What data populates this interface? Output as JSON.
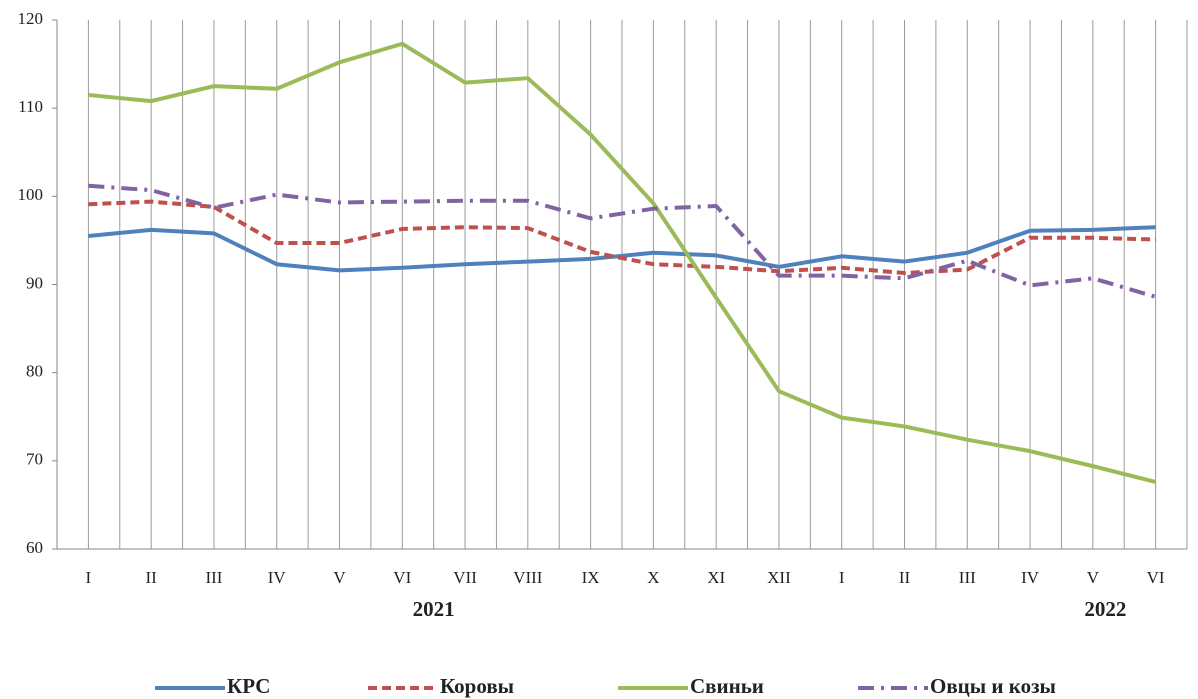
{
  "chart_data": {
    "type": "line",
    "categories": [
      "I",
      "II",
      "III",
      "IV",
      "V",
      "VI",
      "VII",
      "VIII",
      "IX",
      "X",
      "XI",
      "XII",
      "I",
      "II",
      "III",
      "IV",
      "V",
      "VI"
    ],
    "group_labels": [
      "2021",
      "2022"
    ],
    "ylim": [
      60,
      120
    ],
    "yticks": [
      60,
      70,
      80,
      90,
      100,
      110,
      120
    ],
    "grid": true,
    "series": [
      {
        "name": "КРС",
        "color": "#4f81bd",
        "dash": "solid",
        "values": [
          95.5,
          96.2,
          95.8,
          92.3,
          91.6,
          91.9,
          92.3,
          92.6,
          92.9,
          93.6,
          93.3,
          92.0,
          93.2,
          92.6,
          93.6,
          96.1,
          96.2,
          96.5
        ]
      },
      {
        "name": "Коровы",
        "color": "#c0504d",
        "dash": "dash",
        "values": [
          99.1,
          99.4,
          98.8,
          94.7,
          94.7,
          96.3,
          96.5,
          96.4,
          93.7,
          92.3,
          92.0,
          91.5,
          91.9,
          91.3,
          91.7,
          95.3,
          95.3,
          95.1
        ]
      },
      {
        "name": "Свиньи",
        "color": "#9bbb59",
        "dash": "solid",
        "values": [
          111.5,
          110.8,
          112.5,
          112.2,
          115.2,
          117.3,
          112.9,
          113.4,
          107.0,
          99.2,
          88.5,
          77.9,
          74.9,
          73.9,
          72.4,
          71.1,
          69.4,
          67.6
        ]
      },
      {
        "name": "Овцы и козы",
        "color": "#8064a2",
        "dash": "dashdot",
        "values": [
          101.2,
          100.7,
          98.7,
          100.2,
          99.3,
          99.4,
          99.5,
          99.5,
          97.5,
          98.6,
          98.9,
          91.0,
          91.0,
          90.7,
          92.7,
          89.9,
          90.7,
          88.6
        ]
      }
    ]
  }
}
